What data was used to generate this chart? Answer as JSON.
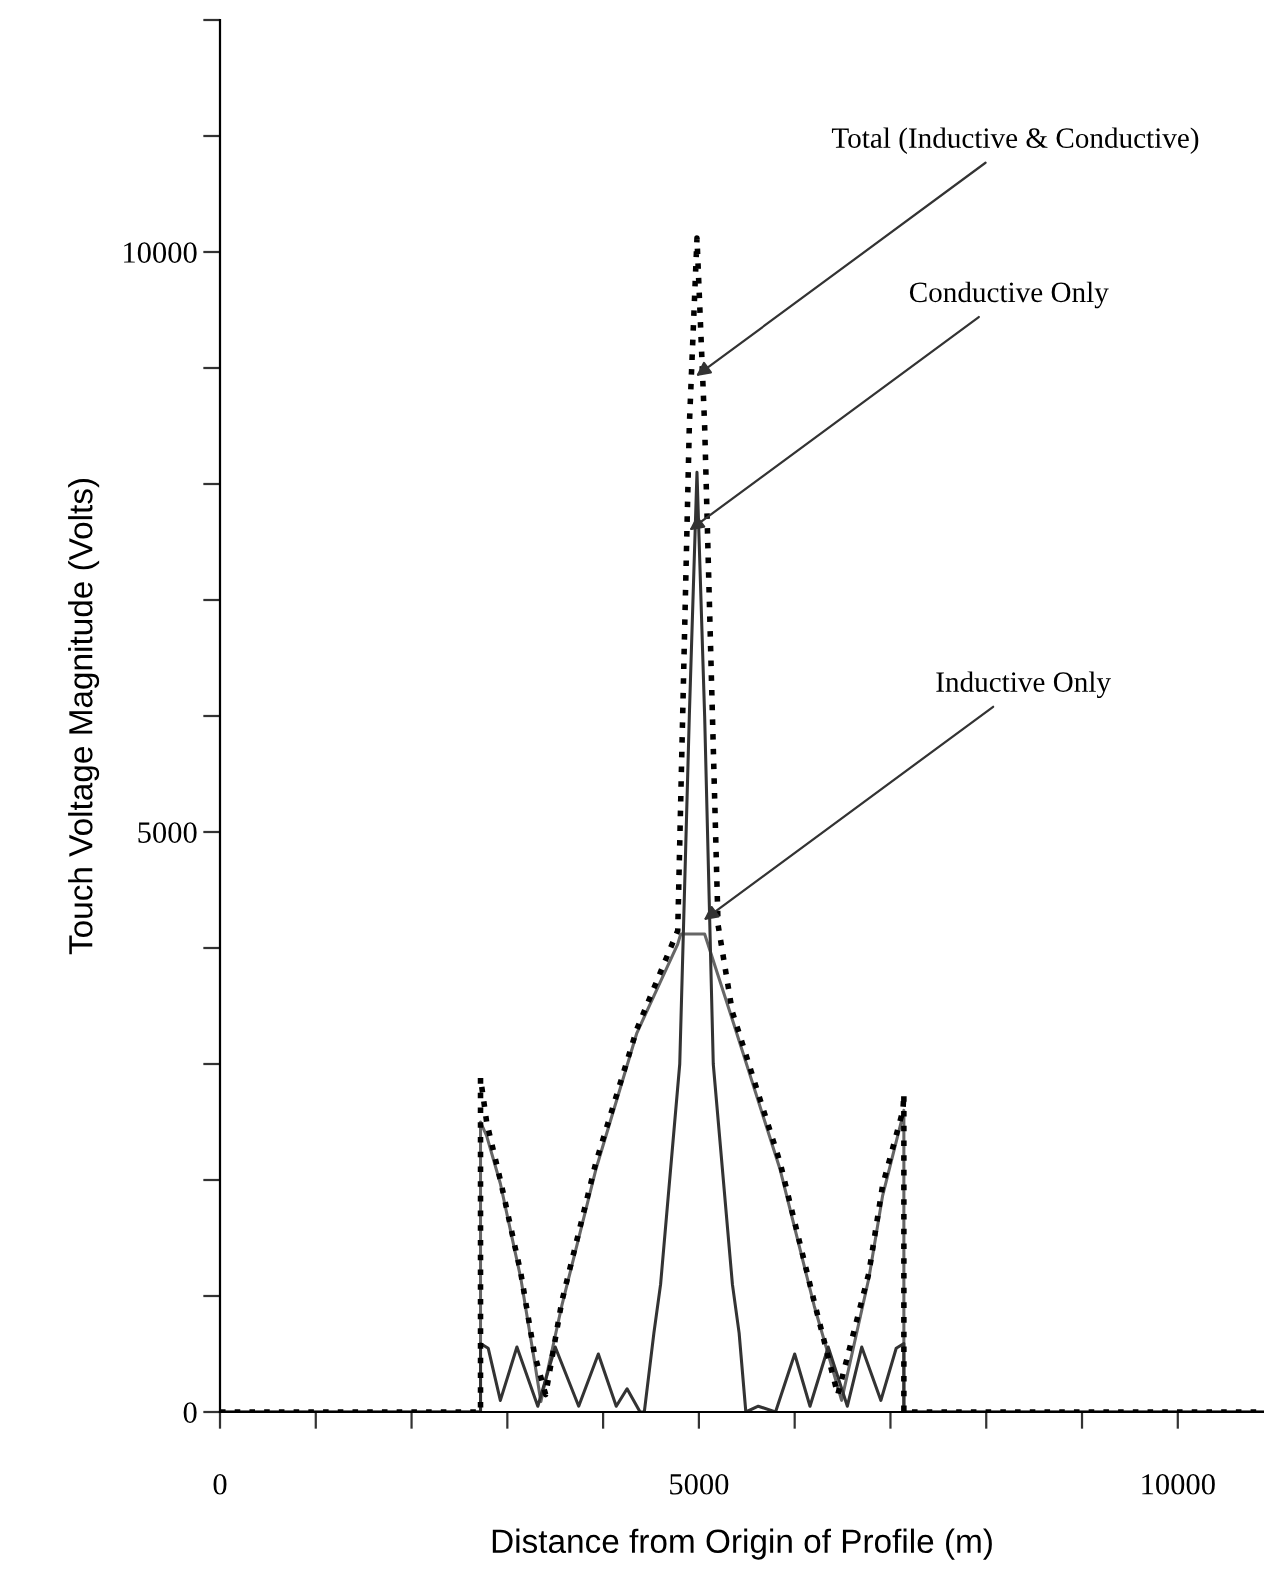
{
  "chart_data": {
    "type": "line",
    "xlabel": "Distance from Origin of Profile (m)",
    "ylabel": "Touch Voltage Magnitude (Volts)",
    "xlim": [
      0,
      10900
    ],
    "xticks": [
      0,
      {
        "value": 1000,
        "label": null
      },
      {
        "value": 2000,
        "label": null
      },
      {
        "value": 3000,
        "label": null
      },
      {
        "value": 4000,
        "label": null
      },
      5000,
      {
        "value": 6000,
        "label": null
      },
      {
        "value": 7000,
        "label": null
      },
      {
        "value": 8000,
        "label": null
      },
      {
        "value": 9000,
        "label": null
      },
      10000
    ],
    "ylim": [
      0,
      12000
    ],
    "yticks": [
      0,
      {
        "value": 1000,
        "label": null
      },
      {
        "value": 2000,
        "label": null
      },
      {
        "value": 3000,
        "label": null
      },
      {
        "value": 4000,
        "label": null
      },
      5000,
      {
        "value": 6000,
        "label": null
      },
      {
        "value": 7000,
        "label": null
      },
      {
        "value": 8000,
        "label": null
      },
      {
        "value": 9000,
        "label": null
      },
      10000,
      {
        "value": 11000,
        "label": null
      },
      {
        "value": 12000,
        "label": null
      }
    ],
    "grid": false,
    "legend": false,
    "series": [
      {
        "color": "#666666",
        "line_style": "solid",
        "x": [
          0,
          2720,
          2720,
          2784,
          2927,
          3140,
          3283,
          3350,
          3568,
          3924,
          4352,
          4779,
          4810,
          5060,
          5349,
          5848,
          6204,
          6490,
          6775,
          6917,
          7130,
          7140,
          7140,
          10900
        ],
        "values": [
          0,
          0,
          2500,
          2380,
          1970,
          1155,
          440,
          90,
          914,
          2090,
          3267,
          4034,
          4120,
          4120,
          3384,
          2090,
          914,
          100,
          1155,
          1860,
          2560,
          2600,
          0,
          0
        ]
      },
      {
        "color": "#333333",
        "line_style": "solid",
        "x": [
          0,
          2720,
          2720,
          2800,
          2927,
          3100,
          3318,
          3500,
          3745,
          3950,
          4137,
          4250,
          4386,
          4430,
          4530,
          4600,
          4800,
          4900,
          4980,
          5060,
          5150,
          5350,
          5420,
          5490,
          5620,
          5800,
          6000,
          6160,
          6350,
          6550,
          6700,
          6900,
          7060,
          7140,
          7140,
          10900
        ],
        "values": [
          0,
          0,
          590,
          550,
          100,
          560,
          50,
          560,
          50,
          500,
          50,
          200,
          0,
          0,
          680,
          1100,
          3000,
          6000,
          8100,
          6000,
          3000,
          1100,
          680,
          0,
          50,
          0,
          500,
          50,
          560,
          50,
          560,
          100,
          550,
          590,
          0,
          0
        ]
      },
      {
        "color": "#000000",
        "line_style": "dotted",
        "x": [
          0,
          2720,
          2720,
          2784,
          2927,
          3140,
          3283,
          3400,
          3568,
          3924,
          4352,
          4779,
          4900,
          4980,
          5060,
          5200,
          5349,
          5848,
          6204,
          6450,
          6775,
          6917,
          7130,
          7140,
          7140,
          10900
        ],
        "values": [
          0,
          0,
          2880,
          2500,
          2000,
          1200,
          500,
          150,
          950,
          2150,
          3300,
          4150,
          8500,
          10120,
          8500,
          4200,
          3450,
          2150,
          950,
          150,
          1200,
          1950,
          2600,
          2740,
          0,
          0
        ]
      }
    ],
    "annotations": [
      {
        "text": "Total (Inductive & Conductive)",
        "x": 4970,
        "y": 8930
      },
      {
        "text": "Conductive Only",
        "x": 4900,
        "y": 7600
      },
      {
        "text": "Inductive Only",
        "x": 5050,
        "y": 4240
      }
    ]
  }
}
